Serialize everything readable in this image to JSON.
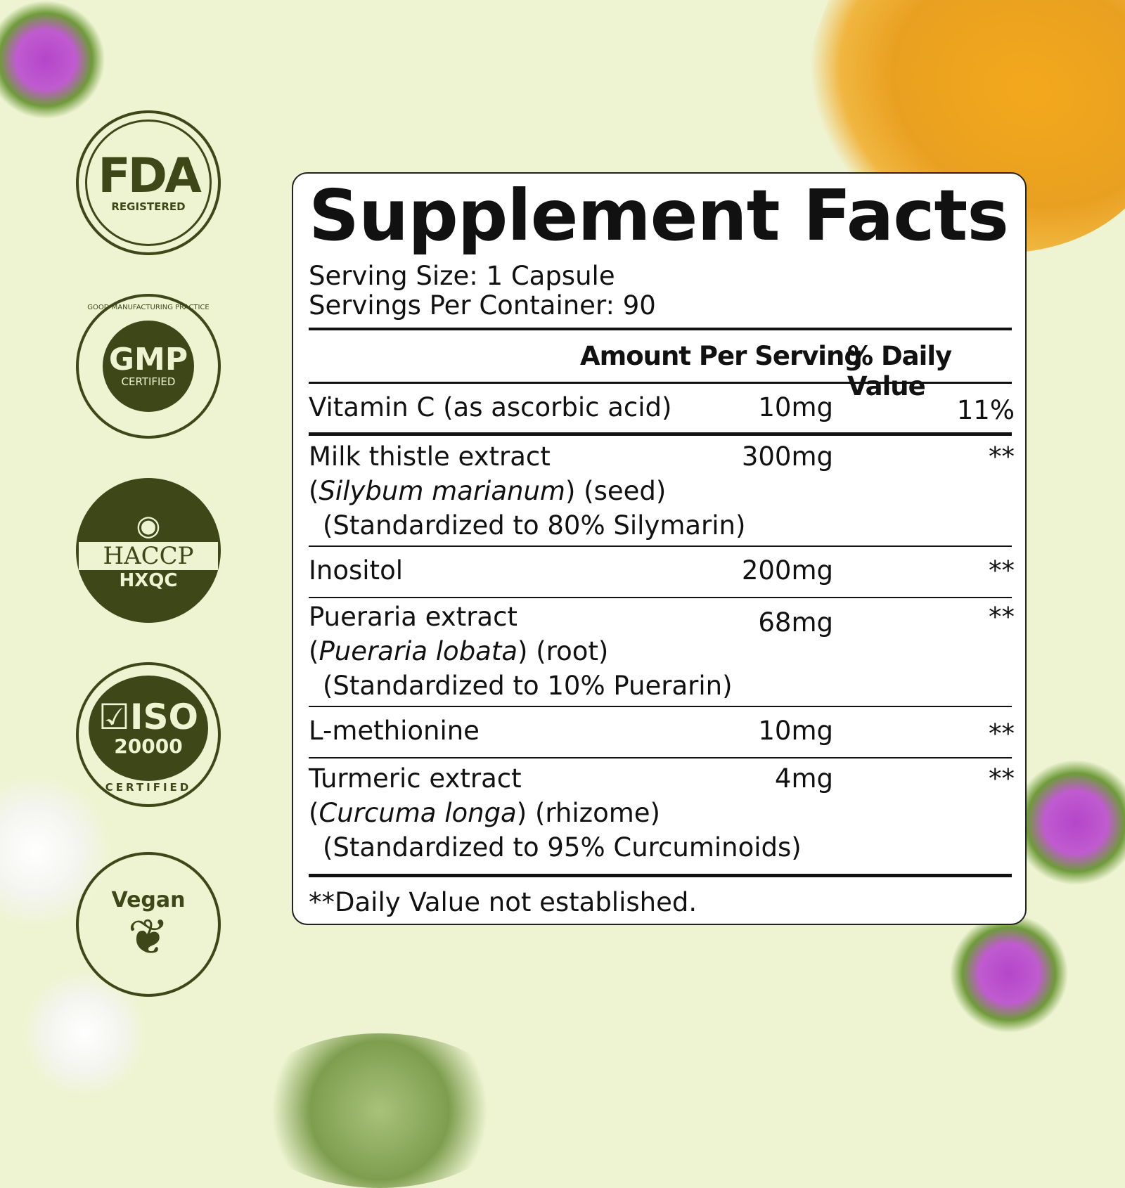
{
  "badges": {
    "fda": {
      "main": "FDA",
      "sub": "REGISTERED"
    },
    "gmp": {
      "ring": "GOOD MANUFACTURING PRACTICE",
      "main": "GMP",
      "sub": "CERTIFIED"
    },
    "haccp": {
      "main": "HACCP",
      "sub": "HXQC"
    },
    "iso": {
      "main": "ISO",
      "number": "20000",
      "sub": "CERTIFIED"
    },
    "vegan": {
      "main": "Vegan"
    }
  },
  "colors": {
    "badge": "#3e4718",
    "background": "#eef4d2"
  },
  "facts": {
    "title": "Supplement Facts",
    "serving_size": "Serving Size: 1 Capsule",
    "servings_per_container": "Servings Per Container: 90",
    "header_amount": "Amount Per Serving",
    "header_dv": "% Daily Value",
    "rows": [
      {
        "name": "Vitamin C (as ascorbic acid)",
        "amount": "10mg",
        "dv": "11%"
      },
      {
        "name": "Milk thistle extract",
        "latin": "Silybum marianum",
        "part": "(seed)",
        "std": "(Standardized to 80% Silymarin)",
        "amount": "300mg",
        "dv": "**"
      },
      {
        "name": "Inositol",
        "amount": "200mg",
        "dv": "**"
      },
      {
        "name": "Pueraria extract",
        "latin": "Pueraria lobata",
        "part": "(root)",
        "std": "(Standardized to 10% Puerarin)",
        "amount": "68mg",
        "dv": "**"
      },
      {
        "name": "L-methionine",
        "amount": "10mg",
        "dv": "**"
      },
      {
        "name": "Turmeric extract",
        "latin": "Curcuma longa",
        "part": "(rhizome)",
        "std": "(Standardized to 95% Curcuminoids)",
        "amount": "4mg",
        "dv": "**"
      }
    ],
    "footnote": "**Daily Value not established."
  }
}
